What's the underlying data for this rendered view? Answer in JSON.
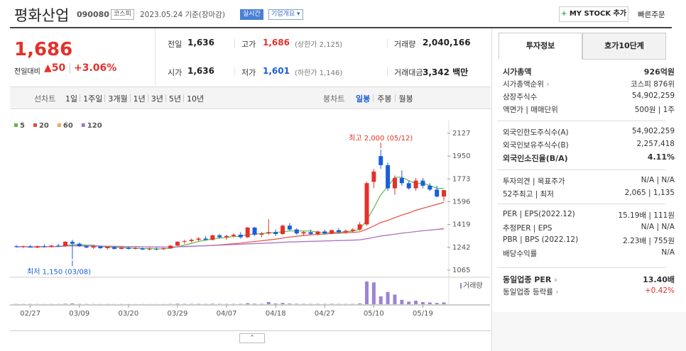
{
  "header": {
    "name": "평화산업",
    "code": "090080",
    "market": "코스피",
    "date": "2023.05.24 기준(장마감)",
    "realtime": "실시간",
    "overview": "기업개요",
    "mystock": "MY STOCK 추가",
    "order": "빠른주문"
  },
  "price": {
    "current": "1,686",
    "change_label": "전일대비",
    "change": "▲50",
    "rate": "+3.06%"
  },
  "summary": [
    [
      {
        "label": "전일",
        "value": "1,636"
      },
      {
        "label": "고가",
        "value": "1,686",
        "note": "(상한가 2,125)"
      },
      {
        "label": "거래량",
        "value": "2,040,166"
      }
    ],
    [
      {
        "label": "시가",
        "value": "1,636"
      },
      {
        "label": "저가",
        "value": "1,601",
        "note": "(하한가 1,146)"
      },
      {
        "label": "거래대금",
        "value": "3,342 백만"
      }
    ]
  ],
  "period": {
    "line_label": "선차트",
    "line_options": [
      "1일",
      "1주일",
      "3개월",
      "1년",
      "3년",
      "5년",
      "10년"
    ],
    "candle_label": "봉차트",
    "candle_options": [
      "일봉",
      "주봉",
      "월봉"
    ]
  },
  "chart_data": {
    "type": "candlestick",
    "categories": [
      null,
      null,
      "02/27",
      null,
      null,
      null,
      null,
      null,
      null,
      "03/09",
      null,
      null,
      null,
      null,
      null,
      null,
      "03/20",
      null,
      null,
      null,
      null,
      null,
      null,
      "03/29",
      null,
      null,
      null,
      null,
      null,
      null,
      "04/07",
      null,
      null,
      null,
      null,
      null,
      null,
      "04/18",
      null,
      null,
      null,
      null,
      null,
      null,
      "04/27",
      null,
      null,
      null,
      null,
      null,
      null,
      "05/10",
      null,
      null,
      null,
      null,
      null,
      null,
      "05/19",
      null,
      null,
      null
    ],
    "ohlc": [
      [
        1250,
        1260,
        1240,
        1245
      ],
      [
        1245,
        1255,
        1235,
        1250
      ],
      [
        1250,
        1260,
        1240,
        1240
      ],
      [
        1240,
        1255,
        1235,
        1250
      ],
      [
        1250,
        1265,
        1240,
        1245
      ],
      [
        1245,
        1260,
        1240,
        1255
      ],
      [
        1255,
        1270,
        1245,
        1250
      ],
      [
        1250,
        1290,
        1245,
        1285
      ],
      [
        1285,
        1300,
        1150,
        1270
      ],
      [
        1270,
        1280,
        1245,
        1250
      ],
      [
        1250,
        1260,
        1235,
        1240
      ],
      [
        1240,
        1255,
        1230,
        1250
      ],
      [
        1250,
        1255,
        1230,
        1235
      ],
      [
        1235,
        1250,
        1225,
        1245
      ],
      [
        1245,
        1250,
        1225,
        1230
      ],
      [
        1230,
        1245,
        1225,
        1240
      ],
      [
        1240,
        1245,
        1225,
        1230
      ],
      [
        1230,
        1245,
        1225,
        1235
      ],
      [
        1235,
        1240,
        1220,
        1225
      ],
      [
        1225,
        1240,
        1220,
        1230
      ],
      [
        1230,
        1240,
        1220,
        1228
      ],
      [
        1228,
        1240,
        1220,
        1235
      ],
      [
        1235,
        1260,
        1230,
        1255
      ],
      [
        1255,
        1290,
        1250,
        1285
      ],
      [
        1285,
        1300,
        1270,
        1290
      ],
      [
        1290,
        1310,
        1280,
        1300
      ],
      [
        1300,
        1320,
        1290,
        1310
      ],
      [
        1310,
        1330,
        1295,
        1300
      ],
      [
        1300,
        1340,
        1295,
        1335
      ],
      [
        1335,
        1345,
        1310,
        1320
      ],
      [
        1320,
        1340,
        1300,
        1330
      ],
      [
        1330,
        1350,
        1320,
        1340
      ],
      [
        1340,
        1360,
        1310,
        1320
      ],
      [
        1320,
        1400,
        1315,
        1395
      ],
      [
        1395,
        1400,
        1330,
        1340
      ],
      [
        1340,
        1360,
        1320,
        1350
      ],
      [
        1350,
        1460,
        1340,
        1360
      ],
      [
        1360,
        1380,
        1330,
        1345
      ],
      [
        1345,
        1420,
        1340,
        1410
      ],
      [
        1410,
        1430,
        1370,
        1380
      ],
      [
        1380,
        1390,
        1340,
        1350
      ],
      [
        1350,
        1370,
        1330,
        1360
      ],
      [
        1360,
        1380,
        1340,
        1345
      ],
      [
        1345,
        1370,
        1335,
        1365
      ],
      [
        1365,
        1380,
        1340,
        1350
      ],
      [
        1350,
        1380,
        1345,
        1375
      ],
      [
        1375,
        1390,
        1350,
        1360
      ],
      [
        1360,
        1380,
        1350,
        1370
      ],
      [
        1370,
        1390,
        1355,
        1380
      ],
      [
        1380,
        1440,
        1370,
        1420
      ],
      [
        1420,
        1750,
        1410,
        1740
      ],
      [
        1750,
        1850,
        1700,
        1830
      ],
      [
        1950,
        2000,
        1850,
        1880
      ],
      [
        1880,
        1900,
        1680,
        1700
      ],
      [
        1700,
        1800,
        1650,
        1780
      ],
      [
        1780,
        1840,
        1720,
        1740
      ],
      [
        1740,
        1760,
        1690,
        1700
      ],
      [
        1700,
        1780,
        1680,
        1760
      ],
      [
        1760,
        1780,
        1700,
        1720
      ],
      [
        1720,
        1740,
        1680,
        1690
      ],
      [
        1690,
        1720,
        1630,
        1636
      ],
      [
        1636,
        1686,
        1601,
        1686
      ]
    ],
    "volume": [
      300000,
      200000,
      250000,
      200000,
      180000,
      220000,
      200000,
      500000,
      900000,
      300000,
      250000,
      200000,
      180000,
      200000,
      150000,
      180000,
      160000,
      150000,
      170000,
      150000,
      160000,
      150000,
      300000,
      600000,
      400000,
      350000,
      400000,
      300000,
      500000,
      350000,
      300000,
      350000,
      400000,
      1200000,
      600000,
      400000,
      2500000,
      800000,
      1500000,
      700000,
      500000,
      400000,
      350000,
      400000,
      300000,
      450000,
      350000,
      300000,
      350000,
      900000,
      26000000,
      25000000,
      9000000,
      14000000,
      11000000,
      5000000,
      3000000,
      4000000,
      2500000,
      2000000,
      1500000,
      2040166
    ],
    "volume_label": "거래량",
    "ylim": [
      1026,
      2160
    ],
    "yticks": [
      2127,
      1950,
      1773,
      1596,
      1419,
      1242,
      1065
    ],
    "up_color": "#e5302b",
    "down_color": "#1a5ed9",
    "volume_color": "#9c84d4",
    "series": [
      {
        "name": "5",
        "color": "#5dbb46"
      },
      {
        "name": "20",
        "color": "#e9493f"
      },
      {
        "name": "60",
        "color": "#f5a44a"
      },
      {
        "name": "120",
        "color": "#a574d4"
      }
    ],
    "annotations": {
      "high": "최고 2,000 (05/12)",
      "low": "최저 1,150 (03/08)"
    }
  },
  "side": {
    "tabs": [
      "투자정보",
      "호가10단계"
    ],
    "groups": [
      [
        {
          "label": "시가총액",
          "value": "926억원"
        },
        {
          "label": "시가총액순위",
          "value": "코스피 876위"
        },
        {
          "label": "상장주식수",
          "value": "54,902,259"
        },
        {
          "label": "액면가 | 매매단위",
          "value": "500원 | 1주"
        }
      ],
      [
        {
          "label": "외국인한도주식수(A)",
          "value": "54,902,259"
        },
        {
          "label": "외국인보유주식수(B)",
          "value": "2,257,418"
        },
        {
          "label": "외국인소진율(B/A)",
          "value": "4.11%"
        }
      ],
      [
        {
          "label": "투자의견 | 목표주가",
          "value": "N/A | N/A"
        },
        {
          "label": "52주최고 | 최저",
          "value": "2,065 | 1,135"
        }
      ],
      [
        {
          "label": "PER | EPS(2022.12)",
          "value": "15.19배 | 111원"
        },
        {
          "label": "추정PER | EPS",
          "value": "N/A | N/A"
        },
        {
          "label": "PBR | BPS (2022.12)",
          "value": "2.23배 | 755원"
        },
        {
          "label": "배당수익률",
          "value": "N/A"
        }
      ],
      [
        {
          "label": "동일업종 PER",
          "value": "13.40배"
        },
        {
          "label": "동일업종 등락률",
          "value": "+0.42%"
        }
      ]
    ]
  }
}
